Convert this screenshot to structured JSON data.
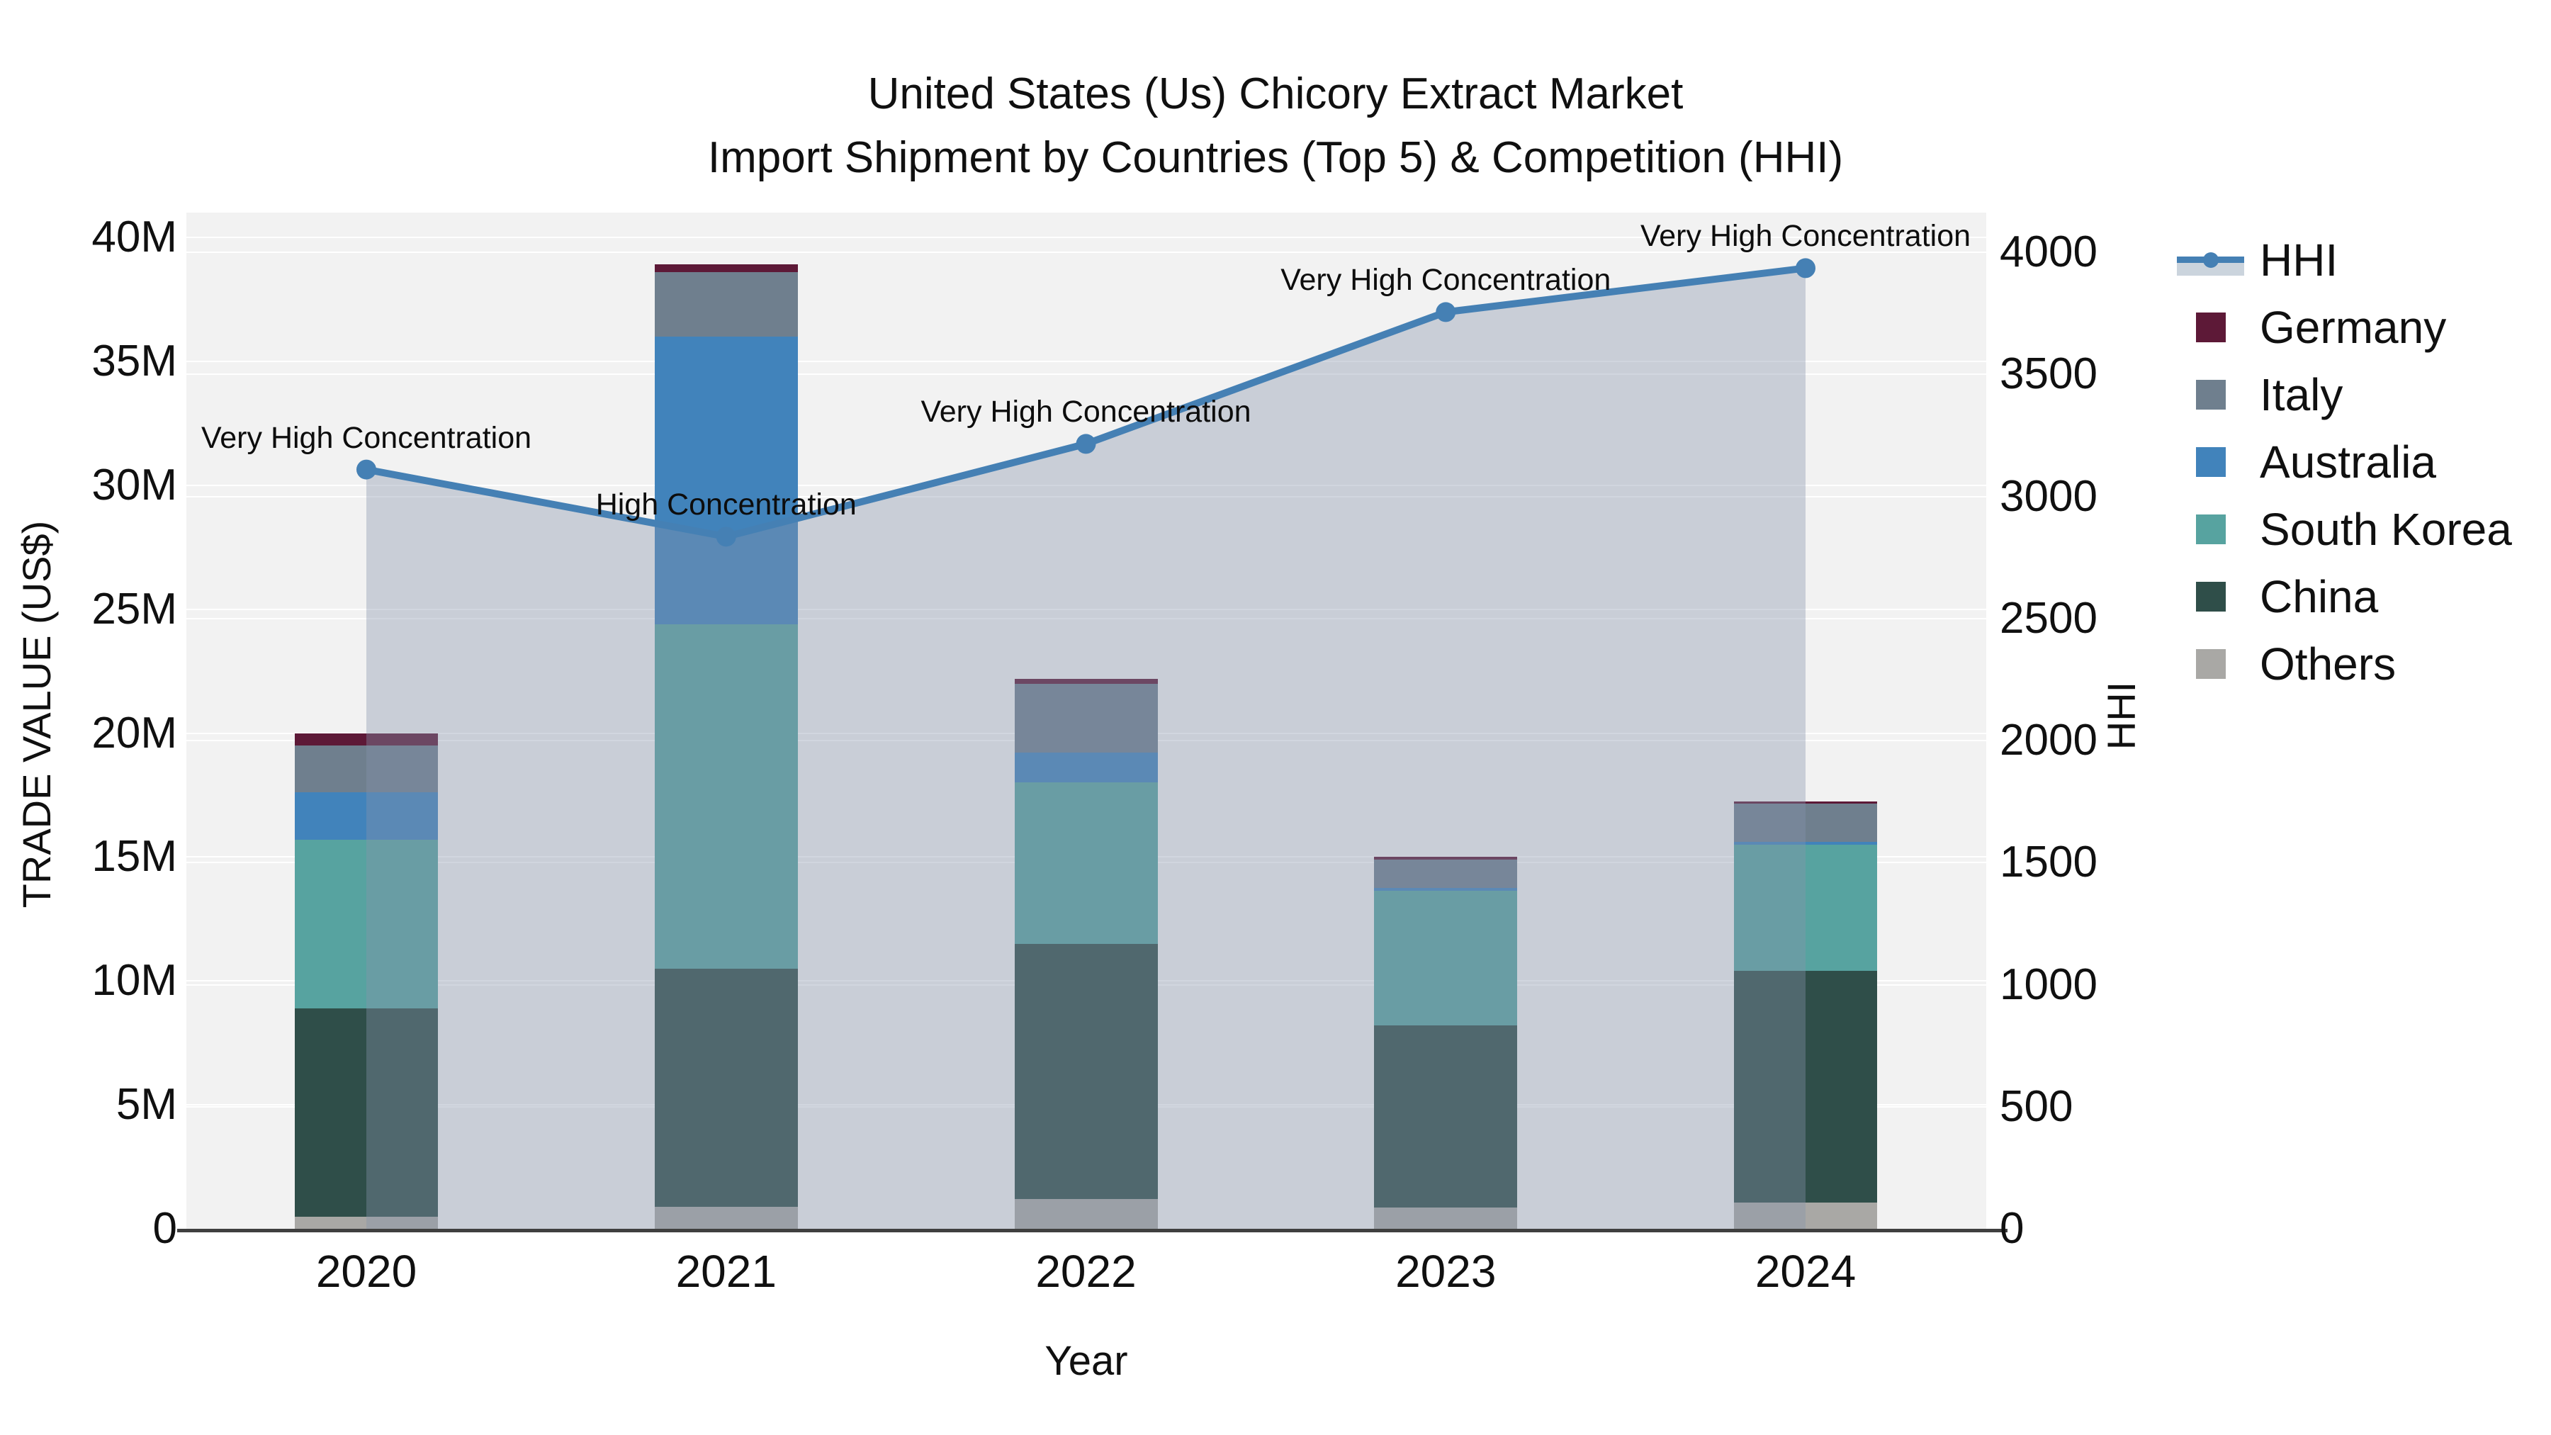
{
  "chart_data": {
    "type": "bar+line",
    "title_line1": "United States (Us) Chicory Extract Market",
    "title_line2": "Import Shipment by Countries (Top 5) & Competition (HHI)",
    "xlabel": "Year",
    "ylabel_left": "TRADE VALUE (US$)",
    "ylabel_right": "HHI",
    "categories": [
      "2020",
      "2021",
      "2022",
      "2023",
      "2024"
    ],
    "y_left_axis": {
      "ticks": [
        "0",
        "5M",
        "10M",
        "15M",
        "20M",
        "25M",
        "30M",
        "35M",
        "40M"
      ],
      "min": 0,
      "max": 40,
      "step": 5,
      "unit": "M US$"
    },
    "y_right_axis": {
      "ticks": [
        "0",
        "500",
        "1000",
        "1500",
        "2000",
        "2500",
        "3000",
        "3500",
        "4000"
      ],
      "min": 0,
      "max": 4000,
      "step": 500
    },
    "series": [
      {
        "name": "Others",
        "color": "#A9A8A5",
        "values": [
          0.5,
          0.9,
          1.2,
          0.85,
          1.05
        ]
      },
      {
        "name": "China",
        "color": "#2F4E49",
        "values": [
          8.4,
          9.6,
          10.3,
          7.35,
          9.35
        ]
      },
      {
        "name": "South Korea",
        "color": "#57A3A0",
        "values": [
          6.8,
          13.9,
          6.5,
          5.45,
          5.1
        ]
      },
      {
        "name": "Australia",
        "color": "#4183BB",
        "values": [
          1.9,
          11.6,
          1.2,
          0.1,
          0.1
        ]
      },
      {
        "name": "Italy",
        "color": "#6F7F8E",
        "values": [
          1.9,
          2.6,
          2.8,
          1.15,
          1.55
        ]
      },
      {
        "name": "Germany",
        "color": "#5D1937",
        "values": [
          0.5,
          0.3,
          0.2,
          0.1,
          0.1
        ]
      }
    ],
    "bar_totals": [
      20.0,
      38.9,
      22.2,
      15.0,
      17.25
    ],
    "hhi": {
      "name": "HHI",
      "values": [
        3110,
        2835,
        3215,
        3755,
        3935
      ],
      "line_color": "#4580B4",
      "fill_color": "rgba(133,148,172,0.38)",
      "legend_band_color": "#CBD4DD"
    },
    "annotations": [
      "Very High Concentration",
      "High Concentration",
      "Very High Concentration",
      "Very High Concentration",
      "Very High Concentration"
    ],
    "legend_order": [
      "HHI",
      "Germany",
      "Italy",
      "Australia",
      "South Korea",
      "China",
      "Others"
    ],
    "colors": {
      "plot_background": "#F2F2F2",
      "page_background": "#FFFFFF",
      "gridline": "#FFFFFF",
      "axis_line": "#3F3F3F",
      "text": "#101010"
    },
    "grid": true,
    "legend_position": "right"
  }
}
